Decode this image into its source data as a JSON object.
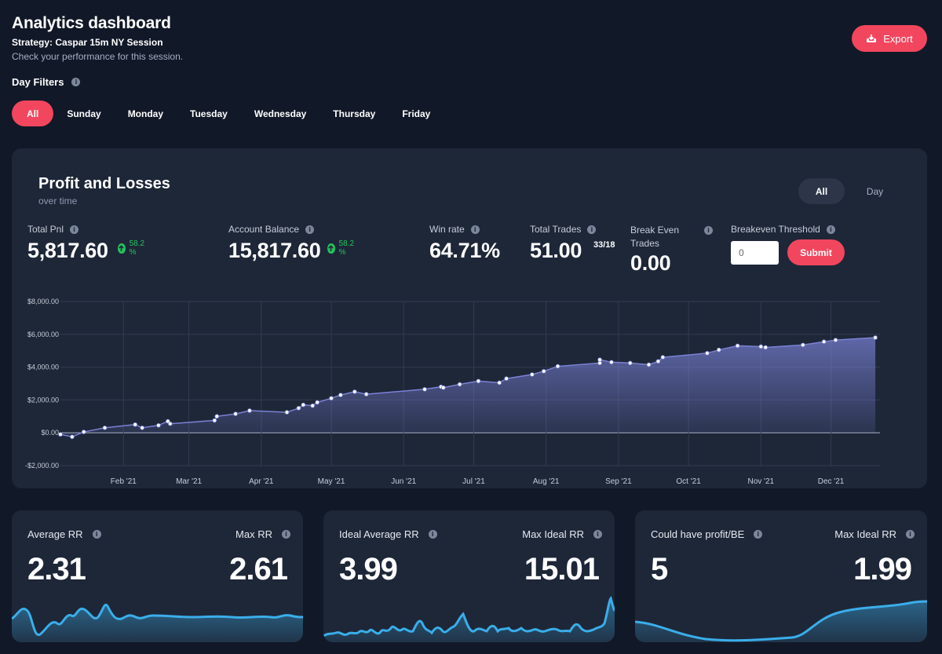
{
  "header": {
    "title": "Analytics dashboard",
    "strategy": "Strategy: Caspar 15m NY Session",
    "subtitle": "Check your performance for this session.",
    "export_label": "Export"
  },
  "filters": {
    "label": "Day Filters",
    "days": [
      "All",
      "Sunday",
      "Monday",
      "Tuesday",
      "Wednesday",
      "Thursday",
      "Friday"
    ],
    "active": "All"
  },
  "pnl_panel": {
    "title": "Profit and Losses",
    "subtitle": "over time",
    "range_options": [
      "All",
      "Day"
    ],
    "range_active": "All",
    "metrics": {
      "total_pnl": {
        "label": "Total Pnl",
        "value": "5,817.60",
        "change": "58.2 %"
      },
      "account_balance": {
        "label": "Account Balance",
        "value": "15,817.60",
        "change": "58.2 %"
      },
      "win_rate": {
        "label": "Win rate",
        "value": "64.71%"
      },
      "total_trades": {
        "label": "Total Trades",
        "value": "51.00",
        "ratio": "33/18"
      },
      "break_even": {
        "label": "Break Even Trades",
        "value": "0.00"
      },
      "threshold": {
        "label": "Breakeven Threshold",
        "input_value": "0",
        "submit_label": "Submit"
      }
    }
  },
  "chart_data": {
    "type": "area",
    "title": "",
    "xlabel": "",
    "ylabel": "",
    "ylim": [
      -2000,
      8000
    ],
    "yticks": [
      8000,
      6000,
      4000,
      2000,
      0,
      -2000
    ],
    "ytick_labels": [
      "$8,000.00",
      "$6,000.00",
      "$4,000.00",
      "$2,000.00",
      "$0.00",
      "-$2,000.00"
    ],
    "xlim": [
      "2021-01-05",
      "2021-12-22"
    ],
    "xticks": [
      "2021-02-01",
      "2021-03-01",
      "2021-04-01",
      "2021-05-01",
      "2021-06-01",
      "2021-07-01",
      "2021-08-01",
      "2021-09-01",
      "2021-10-01",
      "2021-11-01",
      "2021-12-01"
    ],
    "xtick_labels": [
      "Feb '21",
      "Mar '21",
      "Apr '21",
      "May '21",
      "Jun '21",
      "Jul '21",
      "Aug '21",
      "Sep '21",
      "Oct '21",
      "Nov '21",
      "Dec '21"
    ],
    "grid": true,
    "color": "#7b82d8",
    "x": [
      "2021-01-05",
      "2021-01-10",
      "2021-01-15",
      "2021-01-24",
      "2021-02-06",
      "2021-02-09",
      "2021-02-16",
      "2021-02-20",
      "2021-02-21",
      "2021-03-12",
      "2021-03-13",
      "2021-03-21",
      "2021-03-27",
      "2021-04-12",
      "2021-04-17",
      "2021-04-19",
      "2021-04-23",
      "2021-04-25",
      "2021-05-01",
      "2021-05-05",
      "2021-05-11",
      "2021-05-16",
      "2021-06-10",
      "2021-06-17",
      "2021-06-18",
      "2021-06-25",
      "2021-07-03",
      "2021-07-12",
      "2021-07-15",
      "2021-07-26",
      "2021-07-31",
      "2021-08-06",
      "2021-08-24",
      "2021-08-24",
      "2021-08-29",
      "2021-09-06",
      "2021-09-14",
      "2021-09-18",
      "2021-09-20",
      "2021-10-09",
      "2021-10-14",
      "2021-10-22",
      "2021-11-01",
      "2021-11-03",
      "2021-11-19",
      "2021-11-28",
      "2021-12-03",
      "2021-12-20"
    ],
    "y": [
      -100,
      -250,
      50,
      300,
      500,
      300,
      450,
      700,
      550,
      750,
      1000,
      1150,
      1350,
      1250,
      1500,
      1700,
      1650,
      1850,
      2100,
      2300,
      2500,
      2350,
      2650,
      2800,
      2750,
      2950,
      3150,
      3050,
      3300,
      3550,
      3750,
      4050,
      4250,
      4450,
      4300,
      4250,
      4150,
      4350,
      4600,
      4850,
      5050,
      5300,
      5250,
      5200,
      5350,
      5550,
      5650,
      5800
    ]
  },
  "cards": [
    {
      "left_label": "Average RR",
      "left_value": "2.31",
      "right_label": "Max RR",
      "right_value": "2.61"
    },
    {
      "left_label": "Ideal Average RR",
      "left_value": "3.99",
      "right_label": "Max Ideal RR",
      "right_value": "15.01"
    },
    {
      "left_label": "Could have profit/BE",
      "left_value": "5",
      "right_label": "Max Ideal RR",
      "right_value": "1.99"
    }
  ],
  "colors": {
    "background": "#111827",
    "panel": "#1e2738",
    "accent": "#f2465e",
    "positive": "#22c55e",
    "series": "#7b82d8",
    "sparkline": "#3aaeea"
  }
}
